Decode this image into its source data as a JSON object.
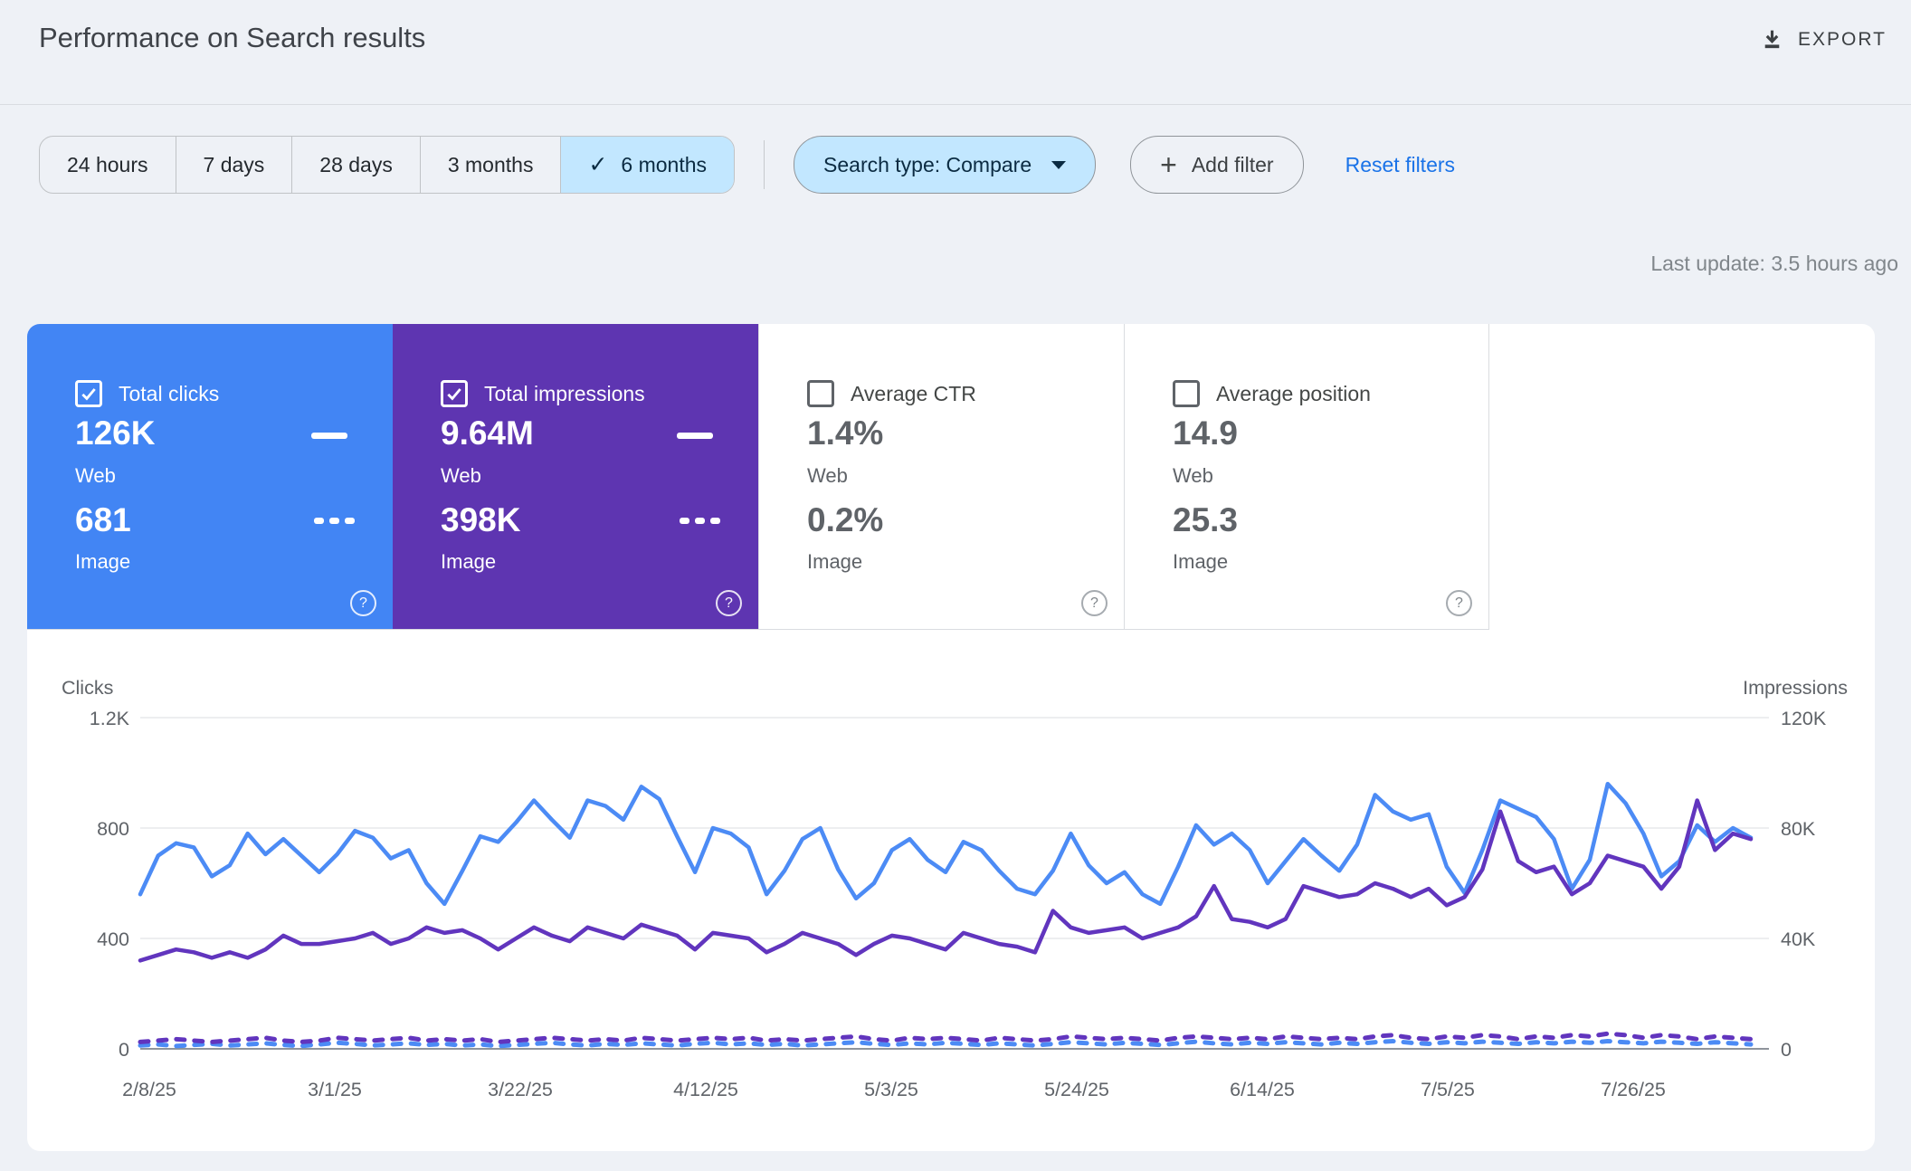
{
  "header": {
    "title": "Performance on Search results",
    "export_label": "EXPORT"
  },
  "filters": {
    "date_ranges": [
      {
        "label": "24 hours",
        "selected": false
      },
      {
        "label": "7 days",
        "selected": false
      },
      {
        "label": "28 days",
        "selected": false
      },
      {
        "label": "3 months",
        "selected": false
      },
      {
        "label": "6 months",
        "selected": true
      }
    ],
    "search_type_label": "Search type: Compare",
    "add_filter_label": "Add filter",
    "reset_label": "Reset filters"
  },
  "status": {
    "last_update": "Last update: 3.5 hours ago"
  },
  "colors": {
    "card_blue": "#4285f4",
    "card_purple": "#5e35b1",
    "clicks_line_blue": "#4c8bf5",
    "impressions_line_purple": "#6135be",
    "selected_chip_bg": "#c2e7ff",
    "link_blue": "#1a73e8"
  },
  "cards": [
    {
      "label": "Total clicks",
      "checked": true,
      "bg": "#4285f4",
      "web_value": "126K",
      "web_label": "Web",
      "image_value": "681",
      "image_label": "Image"
    },
    {
      "label": "Total impressions",
      "checked": true,
      "bg": "#5e35b1",
      "web_value": "9.64M",
      "web_label": "Web",
      "image_value": "398K",
      "image_label": "Image"
    },
    {
      "label": "Average CTR",
      "checked": false,
      "bg": "",
      "web_value": "1.4%",
      "web_label": "Web",
      "image_value": "0.2%",
      "image_label": "Image"
    },
    {
      "label": "Average position",
      "checked": false,
      "bg": "",
      "web_value": "14.9",
      "web_label": "Web",
      "image_value": "25.3",
      "image_label": "Image"
    }
  ],
  "chart_data": {
    "type": "line",
    "left_axis": {
      "label": "Clicks",
      "ticks": [
        "1.2K",
        "800",
        "400",
        "0"
      ],
      "max": 1200
    },
    "right_axis": {
      "label": "Impressions",
      "ticks": [
        "120K",
        "80K",
        "40K",
        "0"
      ],
      "max": 120
    },
    "x_tick_labels": [
      "2/8/25",
      "3/1/25",
      "3/22/25",
      "4/12/25",
      "5/3/25",
      "5/24/25",
      "6/14/25",
      "7/5/25",
      "7/26/25"
    ],
    "series": [
      {
        "name": "Web clicks",
        "axis": "left",
        "style": "solid",
        "color": "#4c8bf5",
        "values": [
          560,
          700,
          745,
          730,
          625,
          665,
          780,
          705,
          760,
          700,
          640,
          705,
          790,
          765,
          690,
          720,
          600,
          525,
          645,
          770,
          750,
          820,
          900,
          830,
          765,
          900,
          880,
          830,
          950,
          905,
          770,
          640,
          800,
          780,
          730,
          560,
          645,
          760,
          800,
          650,
          545,
          600,
          720,
          760,
          685,
          640,
          750,
          720,
          645,
          580,
          560,
          645,
          780,
          665,
          600,
          640,
          560,
          525,
          660,
          810,
          740,
          780,
          720,
          600,
          680,
          760,
          700,
          645,
          740,
          920,
          860,
          830,
          850,
          660,
          565,
          720,
          900,
          870,
          840,
          760,
          580,
          685,
          960,
          890,
          780,
          625,
          680,
          810,
          750,
          800,
          765
        ]
      },
      {
        "name": "Web impressions (thousands)",
        "axis": "right",
        "style": "solid",
        "color": "#6135be",
        "values": [
          32,
          34,
          36,
          35,
          33,
          35,
          33,
          36,
          41,
          38,
          38,
          39,
          40,
          42,
          38,
          40,
          44,
          42,
          43,
          40,
          36,
          40,
          44,
          41,
          39,
          44,
          42,
          40,
          45,
          43,
          41,
          36,
          42,
          41,
          40,
          35,
          38,
          42,
          40,
          38,
          34,
          38,
          41,
          40,
          38,
          36,
          42,
          40,
          38,
          37,
          35,
          50,
          44,
          42,
          43,
          44,
          40,
          42,
          44,
          48,
          59,
          47,
          46,
          44,
          47,
          59,
          57,
          55,
          56,
          60,
          58,
          55,
          58,
          52,
          55,
          65,
          86,
          68,
          64,
          66,
          56,
          60,
          70,
          68,
          66,
          58,
          66,
          90,
          72,
          78,
          76
        ]
      },
      {
        "name": "Image clicks",
        "axis": "left",
        "style": "dashed",
        "color": "#4c8bf5",
        "values": [
          12,
          16,
          10,
          14,
          18,
          12,
          16,
          20,
          14,
          10,
          16,
          22,
          18,
          12,
          16,
          20,
          14,
          18,
          12,
          16,
          10,
          14,
          18,
          22,
          16,
          12,
          18,
          14,
          20,
          16,
          12,
          18,
          22,
          16,
          20,
          14,
          18,
          12,
          16,
          20,
          24,
          18,
          14,
          20,
          16,
          22,
          18,
          14,
          20,
          16,
          12,
          18,
          24,
          20,
          16,
          22,
          18,
          14,
          20,
          26,
          20,
          16,
          22,
          18,
          24,
          20,
          16,
          22,
          18,
          24,
          28,
          22,
          18,
          24,
          20,
          26,
          22,
          18,
          24,
          20,
          26,
          22,
          28,
          24,
          20,
          26,
          22,
          18,
          24,
          20,
          16
        ]
      },
      {
        "name": "Image impressions (thousands)",
        "axis": "right",
        "style": "dashed",
        "color": "#6135be",
        "values": [
          2.5,
          3,
          3.5,
          3,
          2.5,
          3,
          3.5,
          4,
          3,
          2.5,
          3,
          4,
          3.5,
          3,
          3.5,
          4,
          3,
          3.5,
          3,
          3.5,
          2.5,
          3,
          3.5,
          4,
          3.5,
          3,
          3.5,
          3,
          4,
          3.5,
          3,
          3.5,
          4,
          3.5,
          4,
          3,
          3.5,
          3,
          3.5,
          4,
          4.5,
          3.5,
          3,
          4,
          3.5,
          4,
          3.5,
          3,
          4,
          3.5,
          3,
          3.5,
          4.5,
          4,
          3.5,
          4,
          3.5,
          3,
          4,
          4.5,
          4,
          3.5,
          4,
          3.5,
          4.5,
          4,
          3.5,
          4,
          3.5,
          4.5,
          5,
          4,
          3.5,
          4.5,
          4,
          5,
          4.5,
          3.5,
          4.5,
          4,
          5,
          4.5,
          5.5,
          5,
          4,
          5,
          4.5,
          3.5,
          4.5,
          4,
          3.5
        ]
      }
    ]
  }
}
